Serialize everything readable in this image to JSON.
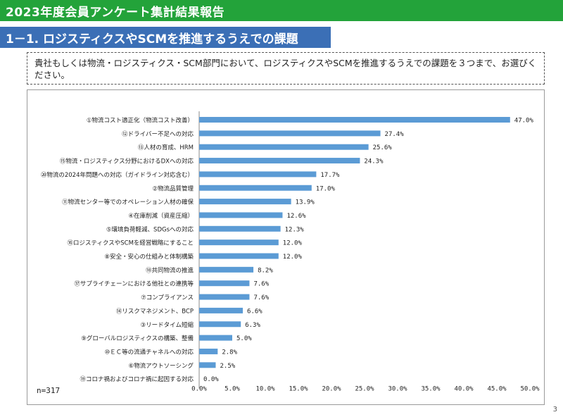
{
  "header": {
    "title": "2023年度会員アンケート集計結果報告"
  },
  "section": {
    "title": "1－1. ロジスティクスやSCMを推進するうえでの課題"
  },
  "question": {
    "text": "貴社もしくは物流・ロジスティクス・SCM部門において、ロジスティクスやSCMを推進するうえでの課題を３つまで、お選びください。"
  },
  "footer": {
    "n_label": "n=317",
    "page_number": "3"
  },
  "colors": {
    "banner": "#23a33a",
    "section_bar": "#3b6fb6",
    "bar": "#5b9bd5"
  },
  "chart_data": {
    "type": "bar",
    "orientation": "horizontal",
    "categories": [
      "①物流コスト適正化（物流コスト改善）",
      "⑫ドライバー不足への対応",
      "⑬人材の育成、HRM",
      "⑮物流・ロジスティクス分野におけるDXへの対応",
      "⑳物流の2024年問題への対応（ガイドライン対応含む）",
      "②物流品質管理",
      "⑪物流センター等でのオペレーション人材の確保",
      "④在庫削減（資産圧縮）",
      "⑤環境負荷軽減、SDGsへの対応",
      "⑯ロジスティクスやSCMを経営戦略にすること",
      "⑧安全・安心の仕組みと体制構築",
      "⑱共同物流の推進",
      "⑰サプライチェーンにおける他社との連携等",
      "⑦コンプライアンス",
      "⑭リスクマネジメント、BCP",
      "③リードタイム短縮",
      "⑨グローバルロジスティクスの構築、整備",
      "⑩ＥＣ等の流通チャネルへの対応",
      "⑥物流アウトソーシング",
      "⑲コロナ禍およびコロナ禍に起因する対応"
    ],
    "values": [
      47.0,
      27.4,
      25.6,
      24.3,
      17.7,
      17.0,
      13.9,
      12.6,
      12.3,
      12.0,
      12.0,
      8.2,
      7.6,
      7.6,
      6.6,
      6.3,
      5.0,
      2.8,
      2.5,
      0.0
    ],
    "value_labels": [
      "47.0%",
      "27.4%",
      "25.6%",
      "24.3%",
      "17.7%",
      "17.0%",
      "13.9%",
      "12.6%",
      "12.3%",
      "12.0%",
      "12.0%",
      "8.2%",
      "7.6%",
      "7.6%",
      "6.6%",
      "6.3%",
      "5.0%",
      "2.8%",
      "2.5%",
      "0.0%"
    ],
    "xlim": [
      0,
      50
    ],
    "ticks": [
      0,
      5,
      10,
      15,
      20,
      25,
      30,
      35,
      40,
      45,
      50
    ],
    "tick_labels": [
      "0.0%",
      "5.0%",
      "10.0%",
      "15.0%",
      "20.0%",
      "25.0%",
      "30.0%",
      "35.0%",
      "40.0%",
      "45.0%",
      "50.0%"
    ],
    "grid": false,
    "legend": "none"
  }
}
